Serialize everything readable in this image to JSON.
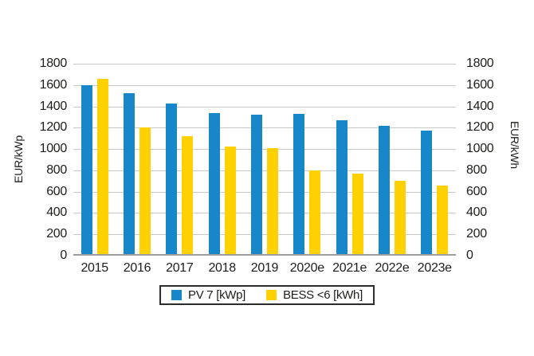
{
  "chart_data": {
    "type": "bar",
    "categories": [
      "2015",
      "2016",
      "2017",
      "2018",
      "2019",
      "2020e",
      "2021e",
      "2022e",
      "2023e"
    ],
    "series": [
      {
        "name": "PV 7 [kWp]",
        "color": "#1787C9",
        "values": [
          1600,
          1520,
          1430,
          1340,
          1320,
          1330,
          1270,
          1220,
          1170
        ]
      },
      {
        "name": "BESS <6 [kWh]",
        "color": "#FFD100",
        "values": [
          1660,
          1200,
          1120,
          1020,
          1010,
          800,
          770,
          700,
          660
        ]
      }
    ],
    "title": "",
    "xlabel": "",
    "ylabel_left": "EUR/kWp",
    "ylabel_right": "EUR/kWh",
    "ylim": [
      0,
      1800
    ],
    "yticks": [
      0,
      200,
      400,
      600,
      800,
      1000,
      1200,
      1400,
      1600,
      1800
    ],
    "grid": true,
    "legend_position": "bottom-center",
    "colors": {
      "gridline": "#c9c9c9",
      "zero_axis": "#9e9e9e",
      "text": "#1d1d1b",
      "legend_border": "#2b2b2b"
    }
  }
}
